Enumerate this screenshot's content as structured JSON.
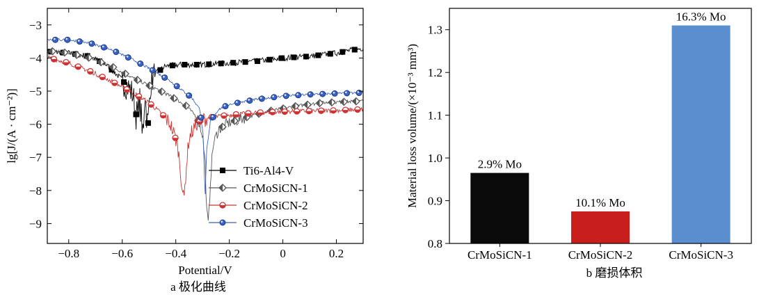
{
  "chart_data": [
    {
      "type": "line",
      "caption": "a  极化曲线",
      "xlabel": "Potential/V",
      "ylabel": "lg[J/(A · cm⁻²)]",
      "xlim": [
        -0.88,
        0.3
      ],
      "ylim": [
        -9.6,
        -2.5
      ],
      "xticks": [
        -0.8,
        -0.6,
        -0.4,
        -0.2,
        0,
        0.2
      ],
      "xtick_labels": [
        "−0.8",
        "−0.6",
        "−0.4",
        "−0.2",
        "0",
        "0.2"
      ],
      "yticks": [
        -3,
        -4,
        -5,
        -6,
        -7,
        -8,
        -9
      ],
      "ytick_labels": [
        "−3",
        "−4",
        "−5",
        "−6",
        "−7",
        "−8",
        "−9"
      ],
      "legend_position": "lower-right",
      "grid": false,
      "series": [
        {
          "name": "Ti6-Al4-V",
          "color": "#000000",
          "marker": "square",
          "points": [
            [
              -0.88,
              -3.8
            ],
            [
              -0.8,
              -3.85
            ],
            [
              -0.72,
              -3.95
            ],
            [
              -0.66,
              -4.2
            ],
            [
              -0.62,
              -4.5
            ],
            [
              -0.58,
              -4.85
            ],
            [
              -0.56,
              -5.1
            ],
            [
              -0.545,
              -5.9
            ],
            [
              -0.535,
              -5.2
            ],
            [
              -0.525,
              -6.5
            ],
            [
              -0.515,
              -5.0
            ],
            [
              -0.505,
              -6.2
            ],
            [
              -0.495,
              -4.8
            ],
            [
              -0.48,
              -4.5
            ],
            [
              -0.44,
              -4.25
            ],
            [
              -0.38,
              -4.2
            ],
            [
              -0.3,
              -4.2
            ],
            [
              -0.2,
              -4.15
            ],
            [
              -0.1,
              -4.1
            ],
            [
              0.0,
              -4.0
            ],
            [
              0.1,
              -3.95
            ],
            [
              0.2,
              -3.85
            ],
            [
              0.3,
              -3.7
            ]
          ]
        },
        {
          "name": "CrMoSiCN-1",
          "color": "#555555",
          "marker": "diamond",
          "points": [
            [
              -0.88,
              -3.78
            ],
            [
              -0.8,
              -3.85
            ],
            [
              -0.72,
              -4.0
            ],
            [
              -0.64,
              -4.25
            ],
            [
              -0.56,
              -4.6
            ],
            [
              -0.48,
              -4.9
            ],
            [
              -0.42,
              -5.15
            ],
            [
              -0.36,
              -5.45
            ],
            [
              -0.32,
              -5.8
            ],
            [
              -0.3,
              -6.3
            ],
            [
              -0.29,
              -7.2
            ],
            [
              -0.285,
              -8.6
            ],
            [
              -0.278,
              -9.05
            ],
            [
              -0.27,
              -7.6
            ],
            [
              -0.26,
              -6.6
            ],
            [
              -0.24,
              -6.15
            ],
            [
              -0.2,
              -5.95
            ],
            [
              -0.12,
              -5.75
            ],
            [
              -0.05,
              -5.6
            ],
            [
              0.05,
              -5.45
            ],
            [
              0.15,
              -5.35
            ],
            [
              0.3,
              -5.3
            ]
          ]
        },
        {
          "name": "CrMoSiCN-2",
          "color": "#cc3333",
          "marker": "half-circle",
          "points": [
            [
              -0.88,
              -3.98
            ],
            [
              -0.8,
              -4.15
            ],
            [
              -0.72,
              -4.4
            ],
            [
              -0.64,
              -4.7
            ],
            [
              -0.56,
              -5.05
            ],
            [
              -0.5,
              -5.35
            ],
            [
              -0.45,
              -5.7
            ],
            [
              -0.42,
              -6.0
            ],
            [
              -0.4,
              -6.45
            ],
            [
              -0.39,
              -6.8
            ],
            [
              -0.38,
              -7.6
            ],
            [
              -0.37,
              -8.35
            ],
            [
              -0.36,
              -7.2
            ],
            [
              -0.35,
              -6.4
            ],
            [
              -0.32,
              -5.95
            ],
            [
              -0.28,
              -5.8
            ],
            [
              -0.2,
              -5.72
            ],
            [
              -0.1,
              -5.65
            ],
            [
              0.0,
              -5.62
            ],
            [
              0.1,
              -5.6
            ],
            [
              0.2,
              -5.58
            ],
            [
              0.3,
              -5.55
            ]
          ]
        },
        {
          "name": "CrMoSiCN-3",
          "color": "#3a62c4",
          "marker": "circle",
          "points": [
            [
              -0.88,
              -3.45
            ],
            [
              -0.8,
              -3.45
            ],
            [
              -0.72,
              -3.55
            ],
            [
              -0.64,
              -3.75
            ],
            [
              -0.56,
              -4.05
            ],
            [
              -0.48,
              -4.4
            ],
            [
              -0.42,
              -4.7
            ],
            [
              -0.38,
              -4.95
            ],
            [
              -0.34,
              -5.2
            ],
            [
              -0.31,
              -5.55
            ],
            [
              -0.3,
              -6.1
            ],
            [
              -0.295,
              -7.0
            ],
            [
              -0.29,
              -8.2
            ],
            [
              -0.285,
              -6.9
            ],
            [
              -0.27,
              -5.9
            ],
            [
              -0.24,
              -5.55
            ],
            [
              -0.2,
              -5.4
            ],
            [
              -0.1,
              -5.25
            ],
            [
              0.0,
              -5.15
            ],
            [
              0.1,
              -5.1
            ],
            [
              0.2,
              -5.07
            ],
            [
              0.3,
              -5.05
            ]
          ]
        }
      ]
    },
    {
      "type": "bar",
      "caption": "b  磨损体积",
      "categories": [
        "CrMoSiCN-1",
        "CrMoSiCN-2",
        "CrMoSiCN-3"
      ],
      "values": [
        0.965,
        0.875,
        1.31
      ],
      "data_labels": [
        "2.9% Mo",
        "10.1% Mo",
        "16.3% Mo"
      ],
      "colors": [
        "#0a0a0a",
        "#c81e1e",
        "#5b8ecf"
      ],
      "xlabel": "",
      "ylabel": "Material loss volume/(×10⁻³ mm³)",
      "ylim": [
        0.8,
        1.35
      ],
      "yticks": [
        0.8,
        0.9,
        1.0,
        1.1,
        1.2,
        1.3
      ],
      "ytick_labels": [
        "0.8",
        "0.9",
        "1.0",
        "1.1",
        "1.2",
        "1.3"
      ],
      "grid": false
    }
  ]
}
